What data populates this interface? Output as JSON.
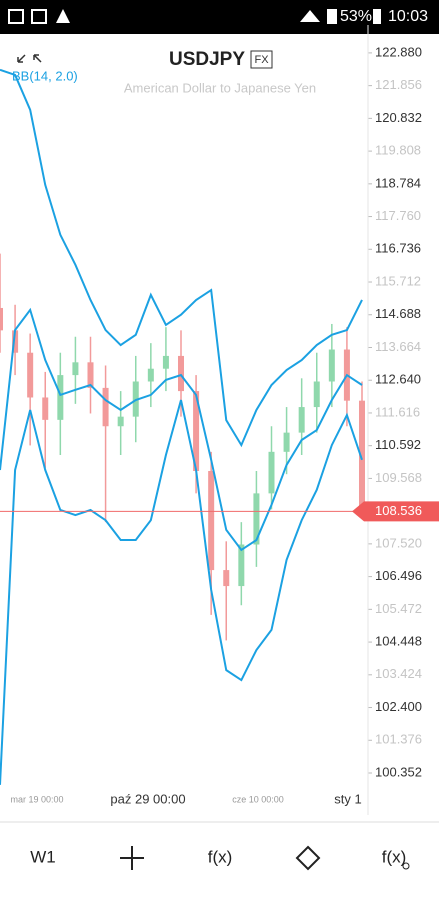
{
  "status_bar": {
    "battery": "53%",
    "time": "10:03"
  },
  "header": {
    "symbol": "USDJPY",
    "badge": "FX",
    "subtitle": "American Dollar to Japanese Yen",
    "indicator": "BB(14, 2.0)"
  },
  "chart_data": {
    "type": "candlestick",
    "ylim": [
      99.82,
      123.44
    ],
    "yticks": [
      {
        "value": 122.88,
        "label": "122.880"
      },
      121.856,
      120.832,
      119.808,
      118.784,
      {
        "value": 117.76,
        "label": "117.760"
      },
      116.736,
      115.712,
      114.688,
      113.664,
      {
        "value": 112.64,
        "label": "112.640"
      },
      111.616,
      110.592,
      109.568,
      {
        "value": 107.52,
        "label": "107.520"
      },
      106.496,
      105.472,
      104.448,
      103.424,
      {
        "value": 102.4,
        "label": "102.400"
      },
      101.376,
      100.352
    ],
    "x_labels": [
      "mar 19 00:00",
      "paź 29 00:00",
      "cze 10 00:00",
      "sty 1"
    ],
    "current_price": 108.536,
    "candles": {
      "open": [
        114.9,
        114.2,
        113.5,
        112.1,
        111.4,
        112.8,
        113.2,
        112.4,
        111.2,
        111.5,
        112.6,
        113.0,
        113.4,
        112.3,
        109.8,
        106.7,
        106.2,
        107.5,
        109.1,
        110.4,
        111.0,
        111.8,
        112.6,
        113.6,
        112.0
      ],
      "high": [
        116.6,
        115.0,
        114.1,
        112.9,
        113.5,
        114.0,
        114.0,
        113.1,
        112.3,
        113.4,
        113.8,
        114.3,
        114.2,
        112.8,
        110.4,
        107.6,
        108.2,
        109.8,
        111.2,
        111.8,
        112.7,
        113.5,
        114.4,
        114.3,
        112.6
      ],
      "low": [
        113.5,
        112.8,
        110.6,
        109.9,
        110.3,
        111.9,
        111.6,
        108.2,
        110.3,
        110.7,
        111.8,
        112.3,
        111.5,
        109.1,
        105.3,
        104.5,
        105.6,
        106.8,
        108.6,
        109.7,
        110.3,
        111.0,
        111.8,
        111.2,
        108.3
      ],
      "close": [
        114.2,
        113.5,
        112.1,
        111.4,
        112.8,
        113.2,
        112.4,
        111.2,
        111.5,
        112.6,
        113.0,
        113.4,
        112.3,
        109.8,
        106.7,
        106.2,
        107.5,
        109.1,
        110.4,
        111.0,
        111.8,
        112.6,
        113.6,
        112.0,
        108.5
      ],
      "up_color": "#8fd8ac",
      "down_color": "#f29a9a"
    },
    "series": [
      {
        "color": "#1ba1e2",
        "values": [
          122.35,
          122.19,
          121.1,
          118.75,
          117.19,
          116.25,
          115.15,
          114.21,
          113.74,
          114.06,
          115.31,
          114.37,
          114.69,
          115.15,
          115.46,
          111.39,
          110.61,
          111.71,
          112.49,
          112.96,
          113.27,
          113.74,
          114.06,
          114.21,
          115.15
        ]
      },
      {
        "color": "#1ba1e2",
        "values": [
          109.83,
          114.21,
          114.84,
          113.27,
          112.18,
          112.34,
          112.49,
          112.02,
          111.71,
          112.02,
          112.18,
          112.65,
          112.8,
          112.18,
          110.15,
          107.96,
          107.33,
          107.64,
          108.74,
          109.99,
          110.77,
          111.08,
          112.02,
          112.8,
          112.49
        ]
      },
      {
        "color": "#1ba1e2",
        "values": [
          99.98,
          109.83,
          111.71,
          109.83,
          108.58,
          108.42,
          108.58,
          108.26,
          107.64,
          107.64,
          108.26,
          110.3,
          112.02,
          109.83,
          106.08,
          103.57,
          103.26,
          104.2,
          104.83,
          107.02,
          108.26,
          109.21,
          110.61,
          111.55,
          110.15
        ]
      }
    ]
  },
  "toolbar": {
    "items": [
      "W1",
      "f(x)",
      "f(x)"
    ]
  }
}
